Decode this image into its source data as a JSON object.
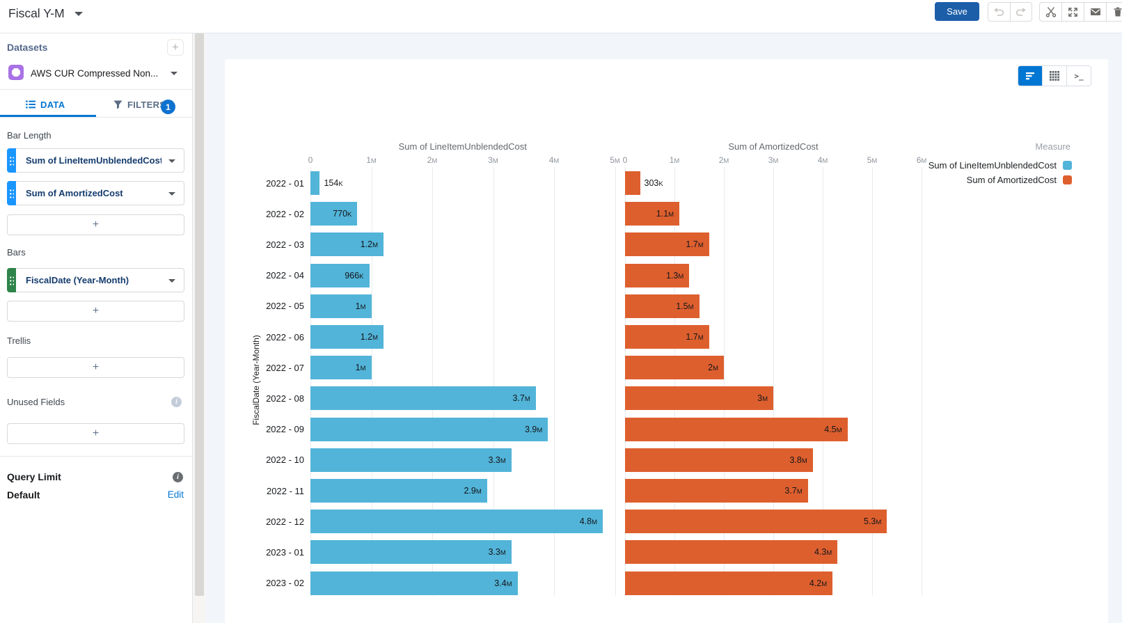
{
  "header": {
    "title": "Fiscal Y-M",
    "save_label": "Save",
    "toolbar_icons": [
      "undo-icon",
      "redo-icon",
      "clip-icon",
      "expand-icon",
      "email-icon",
      "delete-icon"
    ]
  },
  "icons": {
    "info_glyph": "i",
    "query_glyph": ">_"
  },
  "sidebar": {
    "datasets": {
      "title": "Datasets",
      "add_label": "+",
      "dataset_name": "AWS CUR Compressed Non..."
    },
    "tabs": {
      "data_label": "DATA",
      "filters_label": "FILTERS",
      "filters_badge": "1"
    },
    "bar_length": {
      "label": "Bar Length",
      "fields": [
        "Sum of LineItemUnblendedCost",
        "Sum of AmortizedCost"
      ],
      "add_label": "+"
    },
    "bars": {
      "label": "Bars",
      "fields": [
        "FiscalDate (Year-Month)"
      ],
      "add_label": "+"
    },
    "trellis": {
      "label": "Trellis",
      "add_label": "+"
    },
    "unused_fields": {
      "label": "Unused Fields",
      "add_label": "+"
    },
    "query_limit": {
      "label": "Query Limit",
      "value": "Default",
      "edit_label": "Edit"
    }
  },
  "chart_data": {
    "type": "bar",
    "orientation": "horizontal",
    "categories": [
      "2022 - 01",
      "2022 - 02",
      "2022 - 03",
      "2022 - 04",
      "2022 - 05",
      "2022 - 06",
      "2022 - 07",
      "2022 - 08",
      "2022 - 09",
      "2022 - 10",
      "2022 - 11",
      "2022 - 12",
      "2023 - 01",
      "2023 - 02"
    ],
    "category_axis_label": "FiscalDate (Year-Month)",
    "legend_title": "Measure",
    "legend_position": "right",
    "grid": true,
    "view_modes": [
      "chart",
      "table",
      "query"
    ],
    "series": [
      {
        "name": "Sum of LineItemUnblendedCost",
        "color": "#52b4d8",
        "axis_title": "Sum of LineItemUnblendedCost",
        "axis_ticks": [
          "0",
          "1M",
          "2M",
          "3M",
          "4M",
          "5M"
        ],
        "axis_range_m": [
          0,
          5
        ],
        "values_millions": [
          0.154,
          0.77,
          1.2,
          0.966,
          1.0,
          1.2,
          1.0,
          3.7,
          3.9,
          3.3,
          2.9,
          4.8,
          3.3,
          3.4
        ],
        "bar_labels": [
          "154K",
          "770K",
          "1.2M",
          "966K",
          "1M",
          "1.2M",
          "1M",
          "3.7M",
          "3.9M",
          "3.3M",
          "2.9M",
          "4.8M",
          "3.3M",
          "3.4M"
        ]
      },
      {
        "name": "Sum of AmortizedCost",
        "color": "#de5f2e",
        "axis_title": "Sum of AmortizedCost",
        "axis_ticks": [
          "0",
          "1M",
          "2M",
          "3M",
          "4M",
          "5M",
          "6M"
        ],
        "axis_range_m": [
          0,
          6
        ],
        "values_millions": [
          0.303,
          1.1,
          1.7,
          1.3,
          1.5,
          1.7,
          2.0,
          3.0,
          4.5,
          3.8,
          3.7,
          5.3,
          4.3,
          4.2
        ],
        "bar_labels": [
          "303K",
          "1.1M",
          "1.7M",
          "1.3M",
          "1.5M",
          "1.7M",
          "2M",
          "3M",
          "4.5M",
          "3.8M",
          "3.7M",
          "5.3M",
          "4.3M",
          "4.2M"
        ]
      }
    ]
  }
}
